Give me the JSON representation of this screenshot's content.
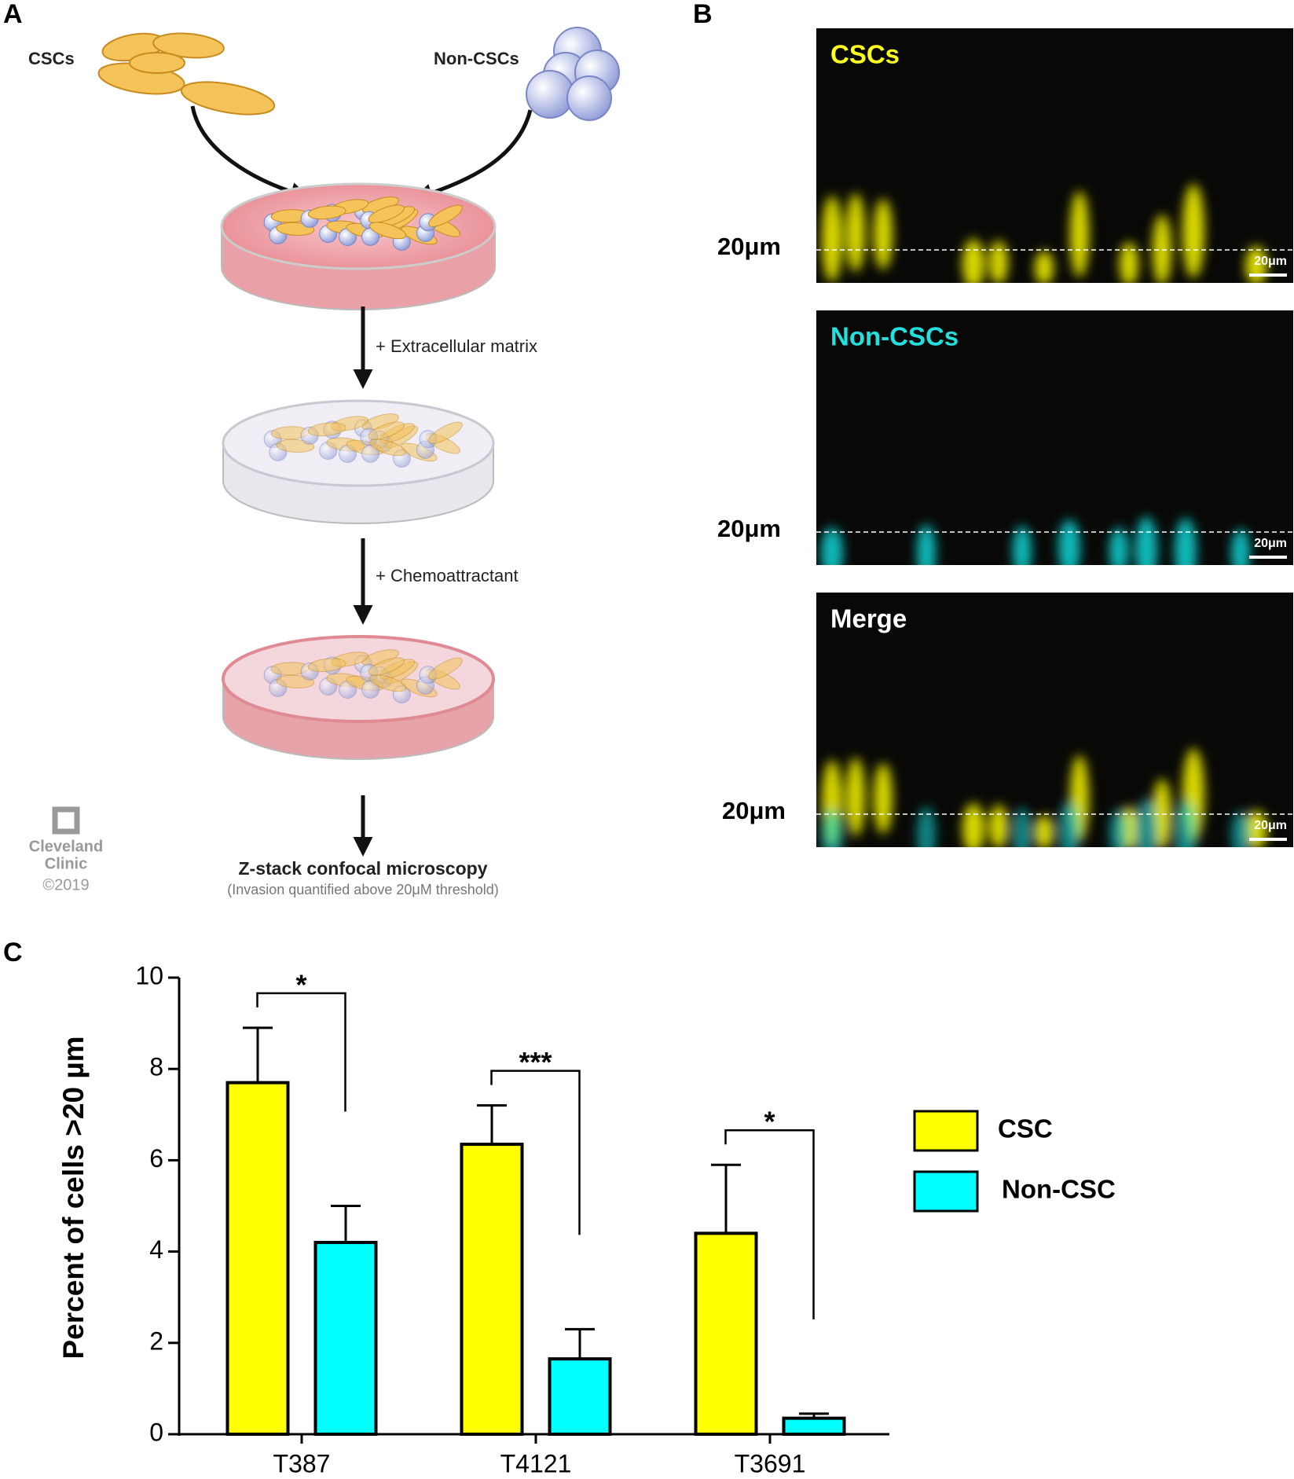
{
  "panels": {
    "a": "A",
    "b": "B",
    "c": "C"
  },
  "diagram": {
    "source_labels": [
      "CSCs",
      "Non-CSCs"
    ],
    "steps": [
      "+ Extracellular matrix",
      "+ Chemoattractant"
    ],
    "final_step": "Z-stack confocal microscopy",
    "final_note": "(Invasion quantified above 20μM threshold)",
    "credit": [
      "Cleveland",
      "Clinic",
      "©2019"
    ]
  },
  "microscopy": {
    "images": [
      {
        "title": "CSCs",
        "color": "#ffff1a",
        "depth_label": "20μm",
        "scale_bar": "20μm"
      },
      {
        "title": "Non-CSCs",
        "color": "#22e0e0",
        "depth_label": "20μm",
        "scale_bar": "20μm"
      },
      {
        "title": "Merge",
        "color": "#ffffff",
        "depth_label": "20μm",
        "scale_bar": "20μm"
      }
    ]
  },
  "chart_data": {
    "type": "bar",
    "ylabel": "Percent of cells >20 µm",
    "categories": [
      "T387",
      "T4121",
      "T3691"
    ],
    "series": [
      {
        "name": "CSC",
        "color": "#ffff00",
        "values": [
          7.7,
          6.35,
          4.4
        ],
        "errors": [
          1.2,
          0.85,
          1.5
        ]
      },
      {
        "name": "Non-CSC",
        "color": "#00ffff",
        "values": [
          4.2,
          1.65,
          0.35
        ],
        "errors": [
          0.8,
          0.65,
          0.1
        ]
      }
    ],
    "significance": [
      "*",
      "***",
      "*"
    ],
    "ylim": [
      0,
      10
    ],
    "yticks": [
      0,
      2,
      4,
      6,
      8,
      10
    ]
  }
}
